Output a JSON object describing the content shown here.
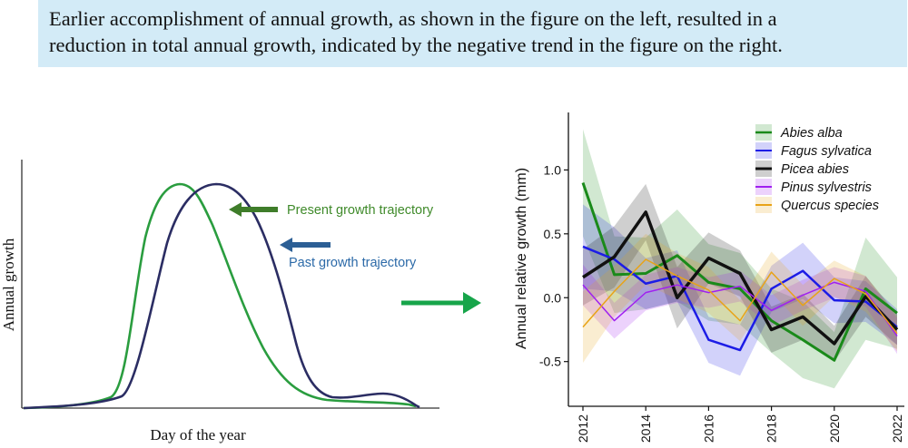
{
  "banner": {
    "line1": "Earlier accomplishment of annual growth, as shown in the figure on the left, resulted in a",
    "line2": "reduction in total annual growth, indicated by the negative trend in the figure on the right."
  },
  "left_figure": {
    "ylabel": "Annual growth",
    "xlabel": "Day of the year",
    "present_label": "Present growth trajectory",
    "past_label": "Past growth trajectory",
    "colors": {
      "present": "#2a9d3f",
      "past": "#2b2d63",
      "present_arrow": "#3f7d2a",
      "past_arrow": "#2c5f95",
      "big_arrow": "#17a54a"
    }
  },
  "chart_data": {
    "type": "line",
    "title": "",
    "xlabel": "",
    "ylabel": "Annual relative growth (mm)",
    "x": [
      2012,
      2013,
      2014,
      2015,
      2016,
      2017,
      2018,
      2019,
      2020,
      2021,
      2022
    ],
    "xticks": [
      "2012",
      "2014",
      "2016",
      "2018",
      "2020",
      "2022"
    ],
    "yticks": [
      "-0.5",
      "0.0",
      "0.5",
      "1.0"
    ],
    "ylim": [
      -0.85,
      1.45
    ],
    "legend_position": "top-right",
    "series": [
      {
        "name": "Abies alba",
        "color": "#1a8a1a",
        "width": 3,
        "values": [
          0.9,
          0.18,
          0.19,
          0.33,
          0.12,
          0.07,
          -0.18,
          -0.33,
          -0.49,
          0.07,
          -0.12
        ],
        "band": [
          0.42,
          0.3,
          0.28,
          0.36,
          0.3,
          0.28,
          0.25,
          0.3,
          0.22,
          0.4,
          0.28
        ]
      },
      {
        "name": "Fagus sylvatica",
        "color": "#1c1ce6",
        "width": 2.5,
        "values": [
          0.4,
          0.3,
          0.11,
          0.17,
          -0.33,
          -0.41,
          0.07,
          0.21,
          -0.02,
          -0.03,
          -0.23
        ],
        "band": [
          0.33,
          0.25,
          0.2,
          0.2,
          0.18,
          0.2,
          0.18,
          0.22,
          0.18,
          0.16,
          0.14
        ]
      },
      {
        "name": "Picea abies",
        "color": "#111111",
        "width": 3.5,
        "values": [
          0.16,
          0.32,
          0.67,
          0.0,
          0.31,
          0.19,
          -0.25,
          -0.15,
          -0.36,
          0.01,
          -0.25
        ],
        "band": [
          0.22,
          0.24,
          0.22,
          0.24,
          0.2,
          0.18,
          0.18,
          0.18,
          0.14,
          0.16,
          0.12
        ]
      },
      {
        "name": "Pinus sylvestris",
        "color": "#a020f0",
        "width": 1.5,
        "values": [
          0.1,
          -0.18,
          0.04,
          0.1,
          0.04,
          0.09,
          -0.1,
          0.02,
          0.12,
          0.05,
          -0.3
        ],
        "band": [
          0.16,
          0.14,
          0.14,
          0.14,
          0.12,
          0.12,
          0.12,
          0.12,
          0.12,
          0.12,
          0.14
        ]
      },
      {
        "name": "Quercus species",
        "color": "#e8a317",
        "width": 1.5,
        "values": [
          -0.23,
          0.05,
          0.3,
          0.17,
          0.06,
          -0.18,
          0.2,
          -0.06,
          0.15,
          0.03,
          -0.28
        ],
        "band": [
          0.28,
          0.2,
          0.2,
          0.18,
          0.18,
          0.16,
          0.16,
          0.16,
          0.14,
          0.14,
          0.14
        ]
      }
    ]
  }
}
